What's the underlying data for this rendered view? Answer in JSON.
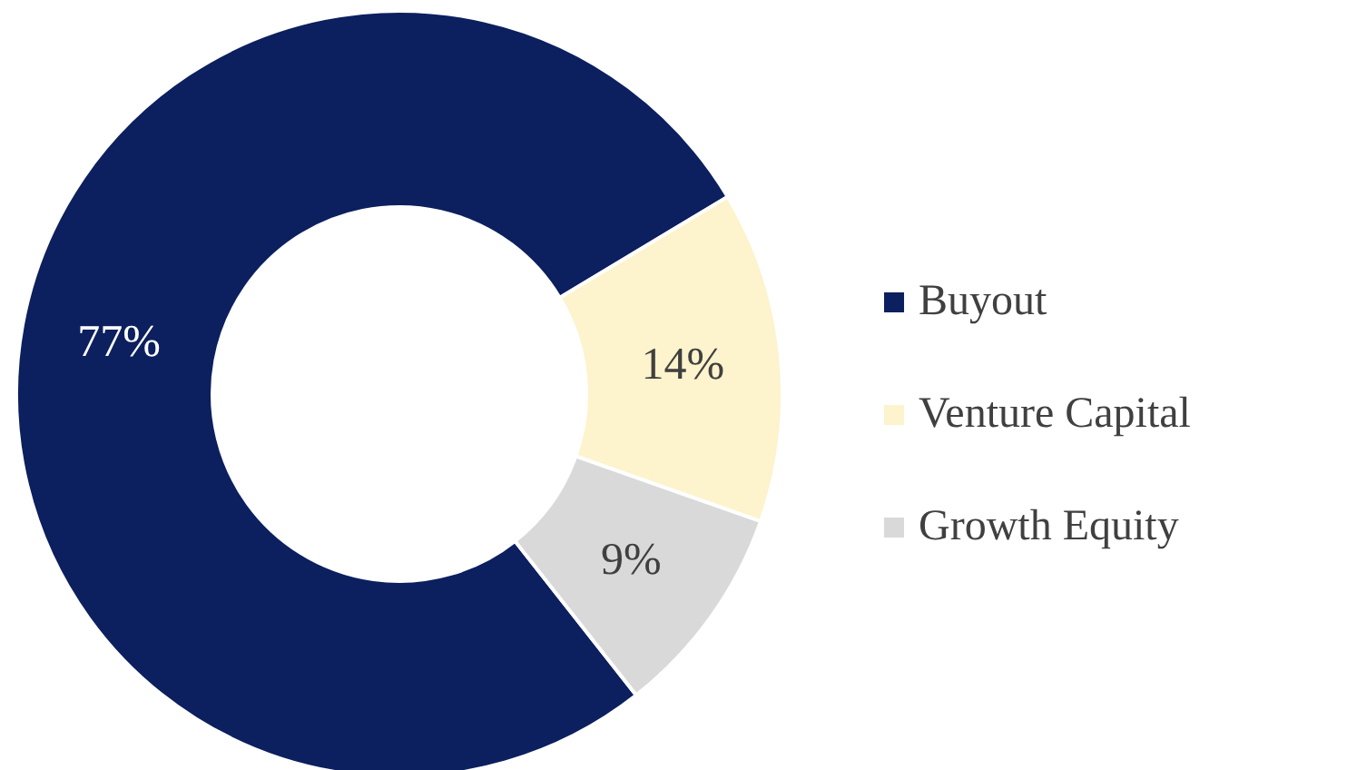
{
  "chart_data": {
    "type": "donut",
    "categories": [
      "Buyout",
      "Venture Capital",
      "Growth Equity"
    ],
    "values": [
      77,
      14,
      9
    ],
    "colors": [
      "#0c1f5e",
      "#fdf3cc",
      "#d9d9d9"
    ],
    "value_labels": [
      "77%",
      "14%",
      "9%"
    ],
    "legend": "right"
  }
}
